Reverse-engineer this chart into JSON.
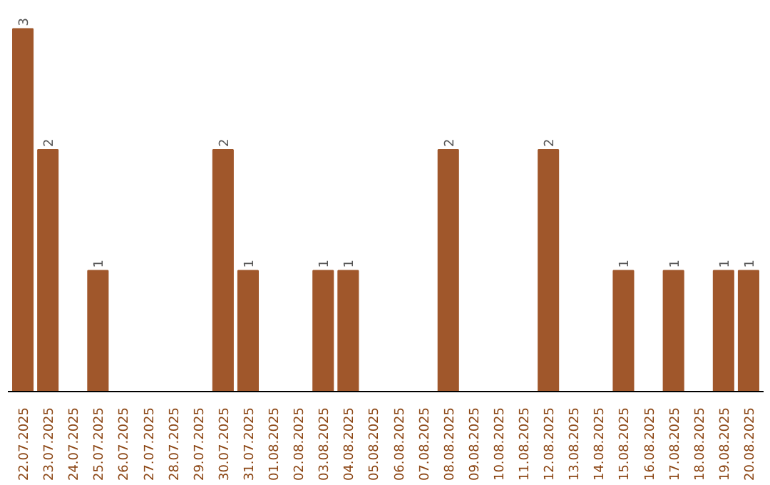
{
  "chart_data": {
    "type": "bar",
    "categories": [
      "22.07.2025",
      "23.07.2025",
      "24.07.2025",
      "25.07.2025",
      "26.07.2025",
      "27.07.2025",
      "28.07.2025",
      "29.07.2025",
      "30.07.2025",
      "31.07.2025",
      "01.08.2025",
      "02.08.2025",
      "03.08.2025",
      "04.08.2025",
      "05.08.2025",
      "06.08.2025",
      "07.08.2025",
      "08.08.2025",
      "09.08.2025",
      "10.08.2025",
      "11.08.2025",
      "12.08.2025",
      "13.08.2025",
      "14.08.2025",
      "15.08.2025",
      "16.08.2025",
      "17.08.2025",
      "18.08.2025",
      "19.08.2025",
      "20.08.2025"
    ],
    "values": [
      3,
      2,
      0,
      1,
      0,
      0,
      0,
      0,
      2,
      1,
      0,
      0,
      1,
      1,
      0,
      0,
      0,
      2,
      0,
      0,
      0,
      2,
      0,
      0,
      1,
      0,
      1,
      0,
      1,
      1
    ],
    "value_labels": [
      "3",
      "2",
      null,
      "1",
      null,
      null,
      null,
      null,
      "2",
      "1",
      null,
      null,
      "1",
      "1",
      null,
      null,
      null,
      "2",
      null,
      null,
      null,
      "2",
      null,
      null,
      "1",
      null,
      "1",
      null,
      "1",
      "1"
    ],
    "color": "#a0572b",
    "grid": false,
    "tick_labels": "x"
  }
}
